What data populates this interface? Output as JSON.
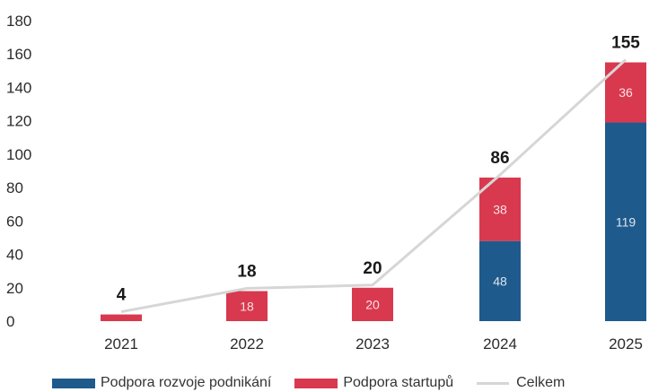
{
  "chart_data": {
    "type": "bar",
    "stacked": true,
    "categories": [
      "2021",
      "2022",
      "2023",
      "2024",
      "2025"
    ],
    "series": [
      {
        "name": "Podpora rozvoje podnikání",
        "color": "#1f5a8c",
        "values": [
          0,
          0,
          0,
          48,
          119
        ],
        "labels": [
          "",
          "",
          "",
          "48",
          "119"
        ]
      },
      {
        "name": "Podpora startupů",
        "color": "#d8394e",
        "values": [
          4,
          18,
          20,
          38,
          36
        ],
        "labels": [
          "",
          "18",
          "20",
          "38",
          "36"
        ]
      }
    ],
    "line": {
      "name": "Celkem",
      "color": "#d6d6d6",
      "values": [
        4,
        18,
        20,
        86,
        155
      ]
    },
    "totals": [
      "4",
      "18",
      "20",
      "86",
      "155"
    ],
    "yticks": [
      "0",
      "20",
      "40",
      "60",
      "80",
      "100",
      "120",
      "140",
      "160",
      "180"
    ],
    "ylim": [
      0,
      180
    ],
    "grid": false,
    "legend_position": "bottom"
  }
}
